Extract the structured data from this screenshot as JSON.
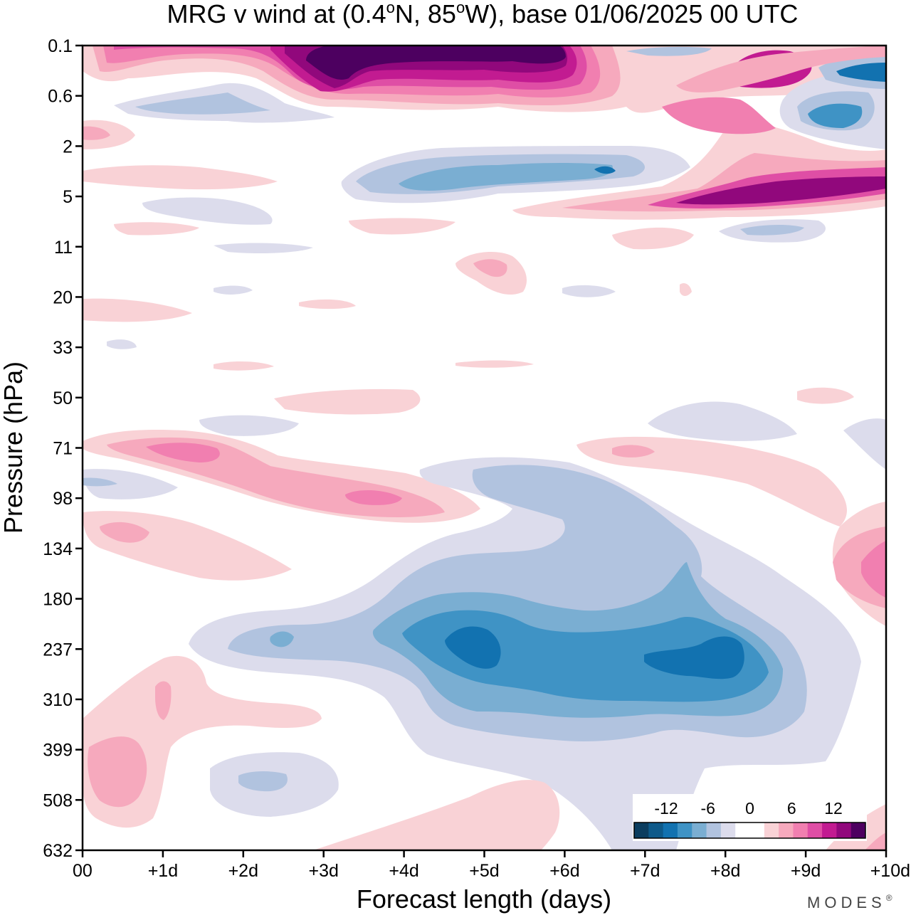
{
  "chart_data": {
    "type": "heatmap",
    "title": "MRG v wind at (0.4°N, 85°W),  base 01/06/2025  00 UTC",
    "title_parts": {
      "pre": "MRG v wind at (0.4",
      "deg1": "o",
      "mid": "N, 85",
      "deg2": "o",
      "post": "W),  base 01/06/2025  00 UTC"
    },
    "xlabel": "Forecast length (days)",
    "ylabel": "Pressure (hPa)",
    "x_ticks": [
      "00",
      "+1d",
      "+2d",
      "+3d",
      "+4d",
      "+5d",
      "+6d",
      "+7d",
      "+8d",
      "+9d",
      "+10d"
    ],
    "xlim": [
      0,
      10
    ],
    "y_ticks": [
      "0.1",
      "0.6",
      "2",
      "5",
      "11",
      "20",
      "33",
      "50",
      "71",
      "98",
      "134",
      "180",
      "237",
      "310",
      "399",
      "508",
      "632"
    ],
    "y_axis_inverted": true,
    "grid": false,
    "colorbar": {
      "position": "bottom-right",
      "tick_labels": [
        "-12",
        "-6",
        "0",
        "6",
        "12"
      ],
      "levels": [
        -15,
        -12,
        -9,
        -6,
        -3,
        0,
        3,
        6,
        9,
        12,
        15
      ],
      "colors": [
        "#0b3d5f",
        "#0e5a8a",
        "#1272b0",
        "#3f93c5",
        "#7aaed2",
        "#b1c3df",
        "#dcdcec",
        "#ffffff",
        "#ffffff",
        "#f9d2d6",
        "#f6a9bd",
        "#f17fb0",
        "#df4ea5",
        "#c21b91",
        "#91087c",
        "#4d0060"
      ]
    },
    "contour_regions": [
      {
        "sign": "positive",
        "peak": 15,
        "x_range": [
          2.5,
          6.0
        ],
        "p_range": [
          "0.1",
          "0.6"
        ]
      },
      {
        "sign": "positive",
        "peak": 12,
        "x_range": [
          7.5,
          10.0
        ],
        "p_range": [
          "2",
          "5"
        ]
      },
      {
        "sign": "negative",
        "peak": -9,
        "x_range": [
          3.5,
          7.5
        ],
        "p_range": [
          "2",
          "5"
        ]
      },
      {
        "sign": "negative",
        "peak": -9,
        "x_range": [
          8.7,
          10.0
        ],
        "p_range": [
          "0.1",
          "2"
        ]
      },
      {
        "sign": "positive",
        "peak": 9,
        "x_range": [
          0.3,
          4.5
        ],
        "p_range": [
          "71",
          "98"
        ]
      },
      {
        "sign": "negative",
        "peak": -12,
        "x_range": [
          1.5,
          9.5
        ],
        "p_range": [
          "98",
          "399"
        ]
      },
      {
        "sign": "positive",
        "peak": 9,
        "x_range": [
          9.0,
          10.0
        ],
        "p_range": [
          "98",
          "237"
        ]
      },
      {
        "sign": "positive",
        "peak": 6,
        "x_range": [
          0.0,
          1.5
        ],
        "p_range": [
          "237",
          "508"
        ]
      },
      {
        "sign": "negative",
        "peak": -6,
        "x_range": [
          1.5,
          3.2
        ],
        "p_range": [
          "399",
          "508"
        ]
      }
    ]
  },
  "brand": {
    "text": "MODES",
    "mark": "®"
  }
}
